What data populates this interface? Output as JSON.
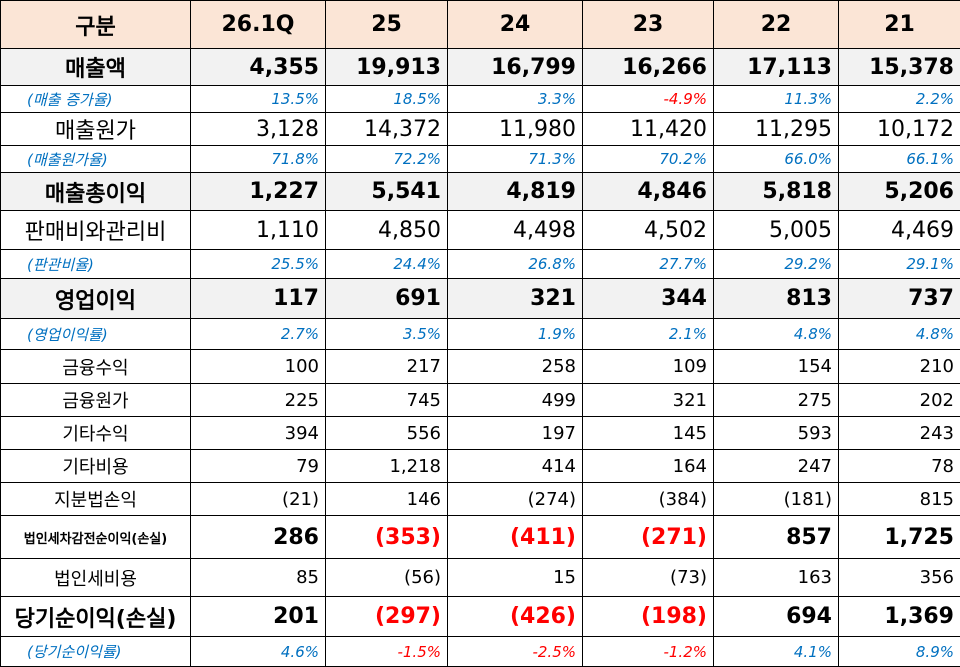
{
  "table": {
    "header": [
      "구분",
      "26.1Q",
      "25",
      "24",
      "23",
      "22",
      "21"
    ],
    "rows": [
      {
        "label": "매출액",
        "values": [
          "4,355",
          "19,913",
          "16,799",
          "16,266",
          "17,113",
          "15,378"
        ]
      },
      {
        "label": "(매출 증가율)",
        "values": [
          "13.5%",
          "18.5%",
          "3.3%",
          "-4.9%",
          "11.3%",
          "2.2%"
        ]
      },
      {
        "label": "매출원가",
        "values": [
          "3,128",
          "14,372",
          "11,980",
          "11,420",
          "11,295",
          "10,172"
        ]
      },
      {
        "label": "(매출원가율)",
        "values": [
          "71.8%",
          "72.2%",
          "71.3%",
          "70.2%",
          "66.0%",
          "66.1%"
        ]
      },
      {
        "label": "매출총이익",
        "values": [
          "1,227",
          "5,541",
          "4,819",
          "4,846",
          "5,818",
          "5,206"
        ]
      },
      {
        "label": "판매비와관리비",
        "values": [
          "1,110",
          "4,850",
          "4,498",
          "4,502",
          "5,005",
          "4,469"
        ]
      },
      {
        "label": "(판관비율)",
        "values": [
          "25.5%",
          "24.4%",
          "26.8%",
          "27.7%",
          "29.2%",
          "29.1%"
        ]
      },
      {
        "label": "영업이익",
        "values": [
          "117",
          "691",
          "321",
          "344",
          "813",
          "737"
        ]
      },
      {
        "label": "(영업이익률)",
        "values": [
          "2.7%",
          "3.5%",
          "1.9%",
          "2.1%",
          "4.8%",
          "4.8%"
        ]
      },
      {
        "label": "금융수익",
        "values": [
          "100",
          "217",
          "258",
          "109",
          "154",
          "210"
        ]
      },
      {
        "label": "금융원가",
        "values": [
          "225",
          "745",
          "499",
          "321",
          "275",
          "202"
        ]
      },
      {
        "label": "기타수익",
        "values": [
          "394",
          "556",
          "197",
          "145",
          "593",
          "243"
        ]
      },
      {
        "label": "기타비용",
        "values": [
          "79",
          "1,218",
          "414",
          "164",
          "247",
          "78"
        ]
      },
      {
        "label": "지분법손익",
        "values": [
          "(21)",
          "146",
          "(274)",
          "(384)",
          "(181)",
          "815"
        ]
      },
      {
        "label": "법인세차감전순이익(손실)",
        "values": [
          "286",
          "(353)",
          "(411)",
          "(271)",
          "857",
          "1,725"
        ]
      },
      {
        "label": "법인세비용",
        "values": [
          "85",
          "(56)",
          "15",
          "(73)",
          "163",
          "356"
        ]
      },
      {
        "label": "당기순이익(손실)",
        "values": [
          "201",
          "(297)",
          "(426)",
          "(198)",
          "694",
          "1,369"
        ]
      },
      {
        "label": "(당기순이익률)",
        "values": [
          "4.6%",
          "-1.5%",
          "-2.5%",
          "-1.2%",
          "4.1%",
          "8.9%"
        ]
      }
    ]
  }
}
